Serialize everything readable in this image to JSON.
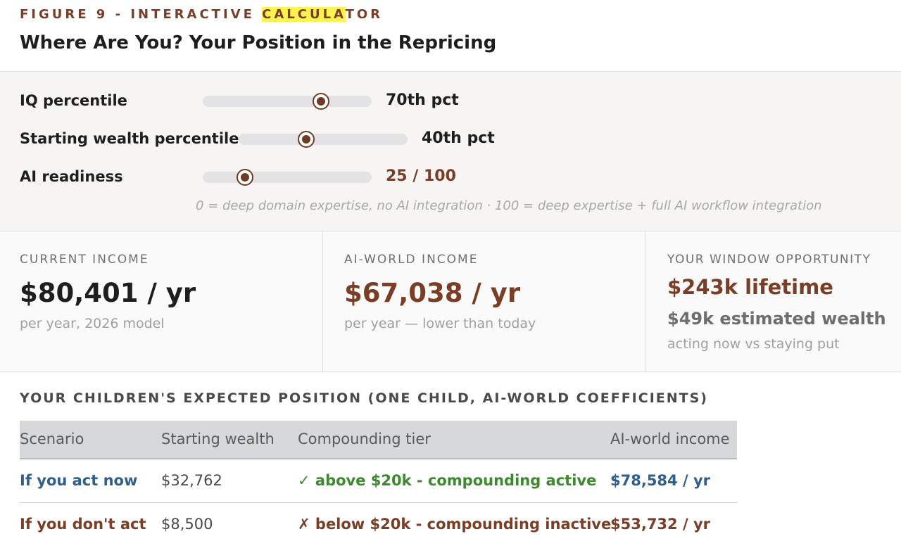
{
  "figure": {
    "label_pre": "FIGURE 9 - INTERACTIVE ",
    "label_highlight": "CALCULA",
    "label_post": "TOR",
    "title": "Where Are You? Your Position in the Repricing"
  },
  "controls": {
    "iq": {
      "label": "IQ percentile",
      "value_text": "70th pct",
      "value": 70,
      "min": 0,
      "max": 100
    },
    "wealth": {
      "label": "Starting wealth percentile",
      "value_text": "40th pct",
      "value": 40,
      "min": 0,
      "max": 100
    },
    "ai": {
      "label": "AI readiness",
      "value_text": "25 / 100",
      "value": 25,
      "min": 0,
      "max": 100
    },
    "hint": "0 = deep domain expertise, no AI integration  ·  100 = deep expertise + full AI workflow integration"
  },
  "cards": {
    "current": {
      "label": "CURRENT INCOME",
      "value": "$80,401 / yr",
      "sub": "per year, 2026 model"
    },
    "aiworld": {
      "label": "AI-WORLD INCOME",
      "value": "$67,038 / yr",
      "sub": "per year — lower than today"
    },
    "window": {
      "label": "YOUR WINDOW OPPORTUNITY",
      "value": "$243k lifetime",
      "mid": "$49k estimated wealth",
      "sub": "acting now vs staying put"
    }
  },
  "children": {
    "title": "YOUR CHILDREN'S EXPECTED POSITION (ONE CHILD, AI-WORLD COEFFICIENTS)",
    "headers": [
      "Scenario",
      "Starting wealth",
      "Compounding tier",
      "AI-world income"
    ],
    "rows": [
      {
        "scenario": "If you act now",
        "wealth": "$32,762",
        "tier": "✓ above $20k - compounding active",
        "income": "$78,584 / yr"
      },
      {
        "scenario": "If you don't act",
        "wealth": "$8,500",
        "tier": "✗ below $20k - compounding inactive",
        "income": "$53,732 / yr"
      }
    ]
  },
  "colors": {
    "accent": "#7a3e26",
    "blue": "#2f5f8a",
    "green": "#3b8a2e"
  }
}
